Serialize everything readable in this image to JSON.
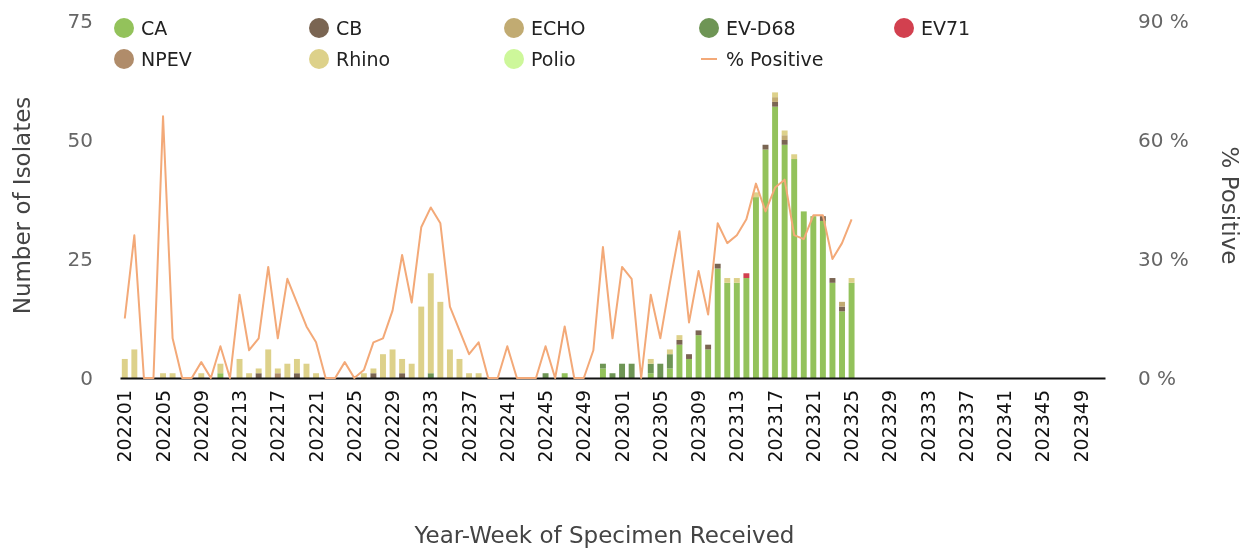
{
  "chart_data": {
    "type": "bar",
    "stacked": true,
    "xlabel": "Year-Week of Specimen Received",
    "ylabel": "Number of Isolates",
    "y2label": "% Positive",
    "categories": [
      "202201",
      null,
      null,
      null,
      "202205",
      null,
      null,
      null,
      "202209",
      null,
      null,
      null,
      "202213",
      null,
      null,
      null,
      "202217",
      null,
      null,
      null,
      "202221",
      null,
      null,
      null,
      "202225",
      null,
      null,
      null,
      "202229",
      null,
      null,
      null,
      "202233",
      null,
      null,
      null,
      "202237",
      null,
      null,
      null,
      "202241",
      null,
      null,
      null,
      "202245",
      null,
      null,
      null,
      "202249",
      null,
      null,
      null,
      "202301",
      null,
      null,
      null,
      "202305",
      null,
      null,
      null,
      "202309",
      null,
      null,
      null,
      "202313",
      null,
      null,
      null,
      "202317",
      null,
      null,
      null,
      "202321",
      null,
      null,
      null,
      "202325",
      null,
      null,
      null,
      "202329",
      null,
      null,
      null,
      "202333",
      null,
      null,
      null,
      "202337",
      null,
      null,
      null,
      "202341",
      null,
      null,
      null,
      "202345",
      null,
      null,
      null,
      "202349",
      null,
      null
    ],
    "ylim": [
      0,
      75
    ],
    "yticks": [
      0,
      25,
      50,
      75
    ],
    "y2lim": [
      0,
      90
    ],
    "y2ticks": [
      {
        "value": 0,
        "label": "0 %"
      },
      {
        "value": 30,
        "label": "30 %"
      },
      {
        "value": 60,
        "label": "60 %"
      },
      {
        "value": 90,
        "label": "90 %"
      }
    ],
    "legend": "top",
    "grid": false,
    "series": [
      {
        "name": "CA",
        "color": "#93c25b",
        "values": [
          0,
          0,
          0,
          0,
          0,
          0,
          0,
          0,
          0,
          0,
          1,
          0,
          0,
          0,
          0,
          0,
          0,
          0,
          0,
          0,
          0,
          0,
          0,
          0,
          0,
          0,
          0,
          0,
          0,
          0,
          0,
          0,
          0,
          0,
          0,
          0,
          0,
          0,
          0,
          0,
          0,
          0,
          0,
          0,
          0,
          0,
          1,
          0,
          0,
          0,
          2,
          0,
          0,
          0,
          0,
          1,
          0,
          2,
          7,
          4,
          9,
          6,
          23,
          20,
          20,
          21,
          38,
          48,
          57,
          49,
          46,
          35,
          34,
          33,
          20,
          14,
          20,
          null,
          null,
          null,
          null,
          null,
          null,
          null,
          null,
          null,
          null,
          null,
          null,
          null,
          null,
          null,
          null,
          null,
          null,
          null,
          null,
          null,
          null,
          null,
          null,
          null,
          null
        ]
      },
      {
        "name": "CB",
        "color": "#7a6552",
        "values": [
          0,
          0,
          0,
          0,
          0,
          0,
          0,
          0,
          0,
          0,
          0,
          0,
          0,
          0,
          1,
          0,
          0,
          0,
          1,
          0,
          0,
          0,
          0,
          0,
          0,
          0,
          1,
          0,
          0,
          1,
          0,
          0,
          0,
          0,
          0,
          0,
          0,
          0,
          0,
          0,
          0,
          0,
          0,
          0,
          0,
          0,
          0,
          0,
          0,
          0,
          0,
          0,
          0,
          0,
          0,
          0,
          0,
          0,
          1,
          1,
          1,
          1,
          1,
          0,
          0,
          0,
          0,
          1,
          1,
          1,
          0,
          0,
          0,
          1,
          1,
          1,
          0,
          null,
          null,
          null,
          null,
          null,
          null,
          null,
          null,
          null,
          null,
          null,
          null,
          null,
          null,
          null,
          null,
          null,
          null,
          null,
          null,
          null,
          null,
          null,
          null,
          null,
          null
        ]
      },
      {
        "name": "ECHO",
        "color": "#c1ab72",
        "values": [
          0,
          0,
          0,
          0,
          0,
          0,
          0,
          0,
          0,
          0,
          0,
          0,
          0,
          0,
          0,
          0,
          0,
          0,
          0,
          0,
          0,
          0,
          0,
          0,
          0,
          0,
          0,
          0,
          0,
          0,
          0,
          0,
          0,
          0,
          0,
          0,
          0,
          0,
          0,
          0,
          0,
          0,
          0,
          0,
          0,
          0,
          0,
          0,
          0,
          0,
          0,
          0,
          0,
          0,
          0,
          0,
          0,
          0,
          0,
          0,
          0,
          0,
          0,
          0,
          0,
          0,
          0,
          0,
          1,
          1,
          0,
          0,
          0,
          0,
          0,
          1,
          0,
          null,
          null,
          null,
          null,
          null,
          null,
          null,
          null,
          null,
          null,
          null,
          null,
          null,
          null,
          null,
          null,
          null,
          null,
          null,
          null,
          null,
          null,
          null,
          null,
          null,
          null
        ]
      },
      {
        "name": "EV-D68",
        "color": "#6e9555",
        "values": [
          0,
          0,
          0,
          0,
          0,
          0,
          0,
          0,
          0,
          0,
          0,
          0,
          0,
          0,
          0,
          0,
          0,
          0,
          0,
          0,
          0,
          0,
          0,
          0,
          0,
          0,
          0,
          0,
          0,
          0,
          0,
          0,
          1,
          0,
          0,
          0,
          0,
          0,
          0,
          0,
          0,
          0,
          0,
          0,
          1,
          0,
          0,
          0,
          0,
          0,
          1,
          1,
          3,
          3,
          0,
          2,
          3,
          3,
          0,
          0,
          0,
          0,
          0,
          0,
          0,
          0,
          0,
          0,
          0,
          0,
          0,
          0,
          0,
          0,
          0,
          0,
          0,
          null,
          null,
          null,
          null,
          null,
          null,
          null,
          null,
          null,
          null,
          null,
          null,
          null,
          null,
          null,
          null,
          null,
          null,
          null,
          null,
          null,
          null,
          null,
          null,
          null,
          null
        ]
      },
      {
        "name": "EV71",
        "color": "#d2404f",
        "values": [
          0,
          0,
          0,
          0,
          0,
          0,
          0,
          0,
          0,
          0,
          0,
          0,
          0,
          0,
          0,
          0,
          0,
          0,
          0,
          0,
          0,
          0,
          0,
          0,
          0,
          0,
          0,
          0,
          0,
          0,
          0,
          0,
          0,
          0,
          0,
          0,
          0,
          0,
          0,
          0,
          0,
          0,
          0,
          0,
          0,
          0,
          0,
          0,
          0,
          0,
          0,
          0,
          0,
          0,
          0,
          0,
          0,
          0,
          0,
          0,
          0,
          0,
          0,
          0,
          0,
          1,
          0,
          0,
          0,
          0,
          0,
          0,
          0,
          0,
          0,
          0,
          0,
          null,
          null,
          null,
          null,
          null,
          null,
          null,
          null,
          null,
          null,
          null,
          null,
          null,
          null,
          null,
          null,
          null,
          null,
          null,
          null,
          null,
          null,
          null,
          null,
          null,
          null
        ]
      },
      {
        "name": "NPEV",
        "color": "#b08c6a",
        "values": [
          0,
          0,
          0,
          0,
          0,
          0,
          0,
          0,
          0,
          0,
          0,
          0,
          0,
          0,
          0,
          0,
          1,
          0,
          0,
          0,
          0,
          0,
          0,
          0,
          0,
          0,
          0,
          0,
          0,
          0,
          0,
          0,
          0,
          0,
          0,
          0,
          0,
          0,
          0,
          0,
          0,
          0,
          0,
          0,
          0,
          0,
          0,
          0,
          0,
          0,
          0,
          0,
          0,
          0,
          0,
          0,
          0,
          0,
          0,
          0,
          0,
          0,
          0,
          0,
          0,
          0,
          0,
          0,
          0,
          0,
          0,
          0,
          0,
          0,
          0,
          0,
          0,
          null,
          null,
          null,
          null,
          null,
          null,
          null,
          null,
          null,
          null,
          null,
          null,
          null,
          null,
          null,
          null,
          null,
          null,
          null,
          null,
          null,
          null,
          null,
          null,
          null,
          null
        ]
      },
      {
        "name": "Rhino",
        "color": "#ddd18a",
        "values": [
          4,
          6,
          0,
          0,
          1,
          1,
          0,
          0,
          1,
          0,
          2,
          0,
          4,
          1,
          1,
          6,
          1,
          3,
          3,
          3,
          1,
          0,
          0,
          0,
          0,
          1,
          1,
          5,
          6,
          3,
          3,
          15,
          21,
          16,
          6,
          4,
          1,
          1,
          0,
          0,
          0,
          0,
          0,
          0,
          0,
          0,
          0,
          0,
          0,
          0,
          0,
          0,
          0,
          0,
          0,
          1,
          0,
          1,
          1,
          0,
          0,
          0,
          0,
          1,
          1,
          0,
          1,
          0,
          1,
          1,
          1,
          0,
          0,
          0,
          0,
          0,
          1,
          null,
          null,
          null,
          null,
          null,
          null,
          null,
          null,
          null,
          null,
          null,
          null,
          null,
          null,
          null,
          null,
          null,
          null,
          null,
          null,
          null,
          null,
          null,
          null,
          null,
          null
        ]
      },
      {
        "name": "Polio",
        "color": "#cdf79a",
        "values": [
          0,
          0,
          0,
          0,
          0,
          0,
          0,
          0,
          0,
          0,
          0,
          0,
          0,
          0,
          0,
          0,
          0,
          0,
          0,
          0,
          0,
          0,
          0,
          0,
          0,
          0,
          0,
          0,
          0,
          0,
          0,
          0,
          0,
          0,
          0,
          0,
          0,
          0,
          0,
          0,
          0,
          0,
          0,
          0,
          0,
          0,
          0,
          0,
          0,
          0,
          0,
          0,
          0,
          0,
          0,
          0,
          0,
          0,
          0,
          0,
          0,
          0,
          0,
          0,
          0,
          0,
          0,
          0,
          0,
          0,
          0,
          0,
          0,
          0,
          0,
          0,
          0,
          null,
          null,
          null,
          null,
          null,
          null,
          null,
          null,
          null,
          null,
          null,
          null,
          null,
          null,
          null,
          null,
          null,
          null,
          null,
          null,
          null,
          null,
          null,
          null,
          null,
          null
        ]
      },
      {
        "name": "% Positive",
        "type": "line",
        "axis": "y2",
        "color": "#f3a978",
        "marker": "none",
        "line_style": "solid",
        "values": [
          15,
          36,
          0,
          0,
          66,
          10,
          0,
          0,
          4,
          0,
          8,
          0,
          21,
          7,
          10,
          28,
          10,
          25,
          19,
          13,
          9,
          0,
          0,
          4,
          0,
          2,
          9,
          10,
          17,
          31,
          19,
          38,
          43,
          39,
          18,
          12,
          6,
          9,
          0,
          0,
          8,
          0,
          0,
          0,
          8,
          0,
          13,
          0,
          0,
          7,
          33,
          10,
          28,
          25,
          0,
          21,
          10,
          24,
          37,
          14,
          27,
          16,
          39,
          34,
          36,
          40,
          49,
          42,
          48,
          50,
          36,
          35,
          41,
          41,
          30,
          34,
          40,
          null,
          null,
          null,
          null,
          null,
          null,
          null,
          null,
          null,
          null,
          null,
          null,
          null,
          null,
          null,
          null,
          null,
          null,
          null,
          null,
          null,
          null,
          null,
          null,
          null,
          null
        ]
      }
    ]
  }
}
